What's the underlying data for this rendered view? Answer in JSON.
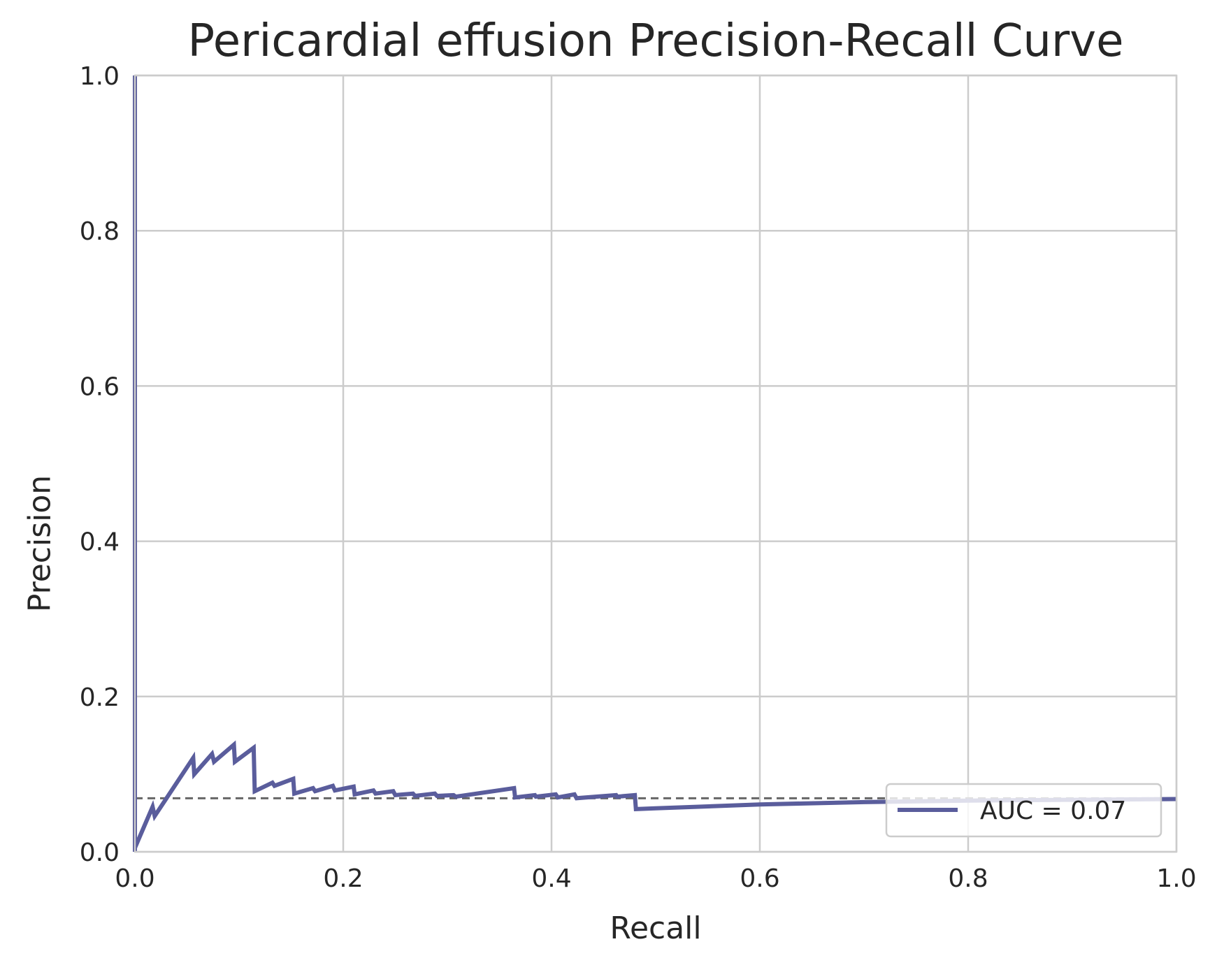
{
  "chart_data": {
    "type": "line",
    "title": "Pericardial effusion Precision-Recall Curve",
    "xlabel": "Recall",
    "ylabel": "Precision",
    "xlim": [
      0.0,
      1.0
    ],
    "ylim": [
      0.0,
      1.0
    ],
    "xticks": [
      "0.0",
      "0.2",
      "0.4",
      "0.6",
      "0.8",
      "1.0"
    ],
    "yticks": [
      "0.0",
      "0.2",
      "0.4",
      "0.6",
      "0.8",
      "1.0"
    ],
    "grid": true,
    "legend_position": "lower-right",
    "colors": {
      "curve": "#5a5d9c",
      "baseline": "#666666",
      "grid": "#cccccc"
    },
    "baseline": {
      "style": "dashed",
      "y": 0.069
    },
    "series": [
      {
        "name": "AUC = 0.07",
        "x": [
          0.0,
          0.0,
          0.0,
          0.017,
          0.019,
          0.056,
          0.057,
          0.074,
          0.076,
          0.095,
          0.096,
          0.114,
          0.115,
          0.132,
          0.134,
          0.152,
          0.153,
          0.171,
          0.173,
          0.19,
          0.192,
          0.21,
          0.211,
          0.229,
          0.231,
          0.248,
          0.25,
          0.267,
          0.269,
          0.288,
          0.29,
          0.306,
          0.308,
          0.364,
          0.365,
          0.384,
          0.385,
          0.404,
          0.406,
          0.422,
          0.424,
          0.462,
          0.463,
          0.48,
          0.481,
          0.5,
          0.6,
          0.7,
          0.8,
          0.9,
          1.0
        ],
        "y": [
          1.0,
          0.0,
          0.005,
          0.058,
          0.046,
          0.121,
          0.1,
          0.126,
          0.116,
          0.138,
          0.116,
          0.134,
          0.078,
          0.089,
          0.085,
          0.094,
          0.075,
          0.082,
          0.078,
          0.085,
          0.079,
          0.084,
          0.074,
          0.079,
          0.075,
          0.078,
          0.073,
          0.075,
          0.072,
          0.075,
          0.072,
          0.073,
          0.071,
          0.082,
          0.07,
          0.073,
          0.071,
          0.074,
          0.07,
          0.074,
          0.069,
          0.073,
          0.071,
          0.073,
          0.055,
          0.056,
          0.061,
          0.064,
          0.066,
          0.067,
          0.068
        ]
      }
    ]
  }
}
